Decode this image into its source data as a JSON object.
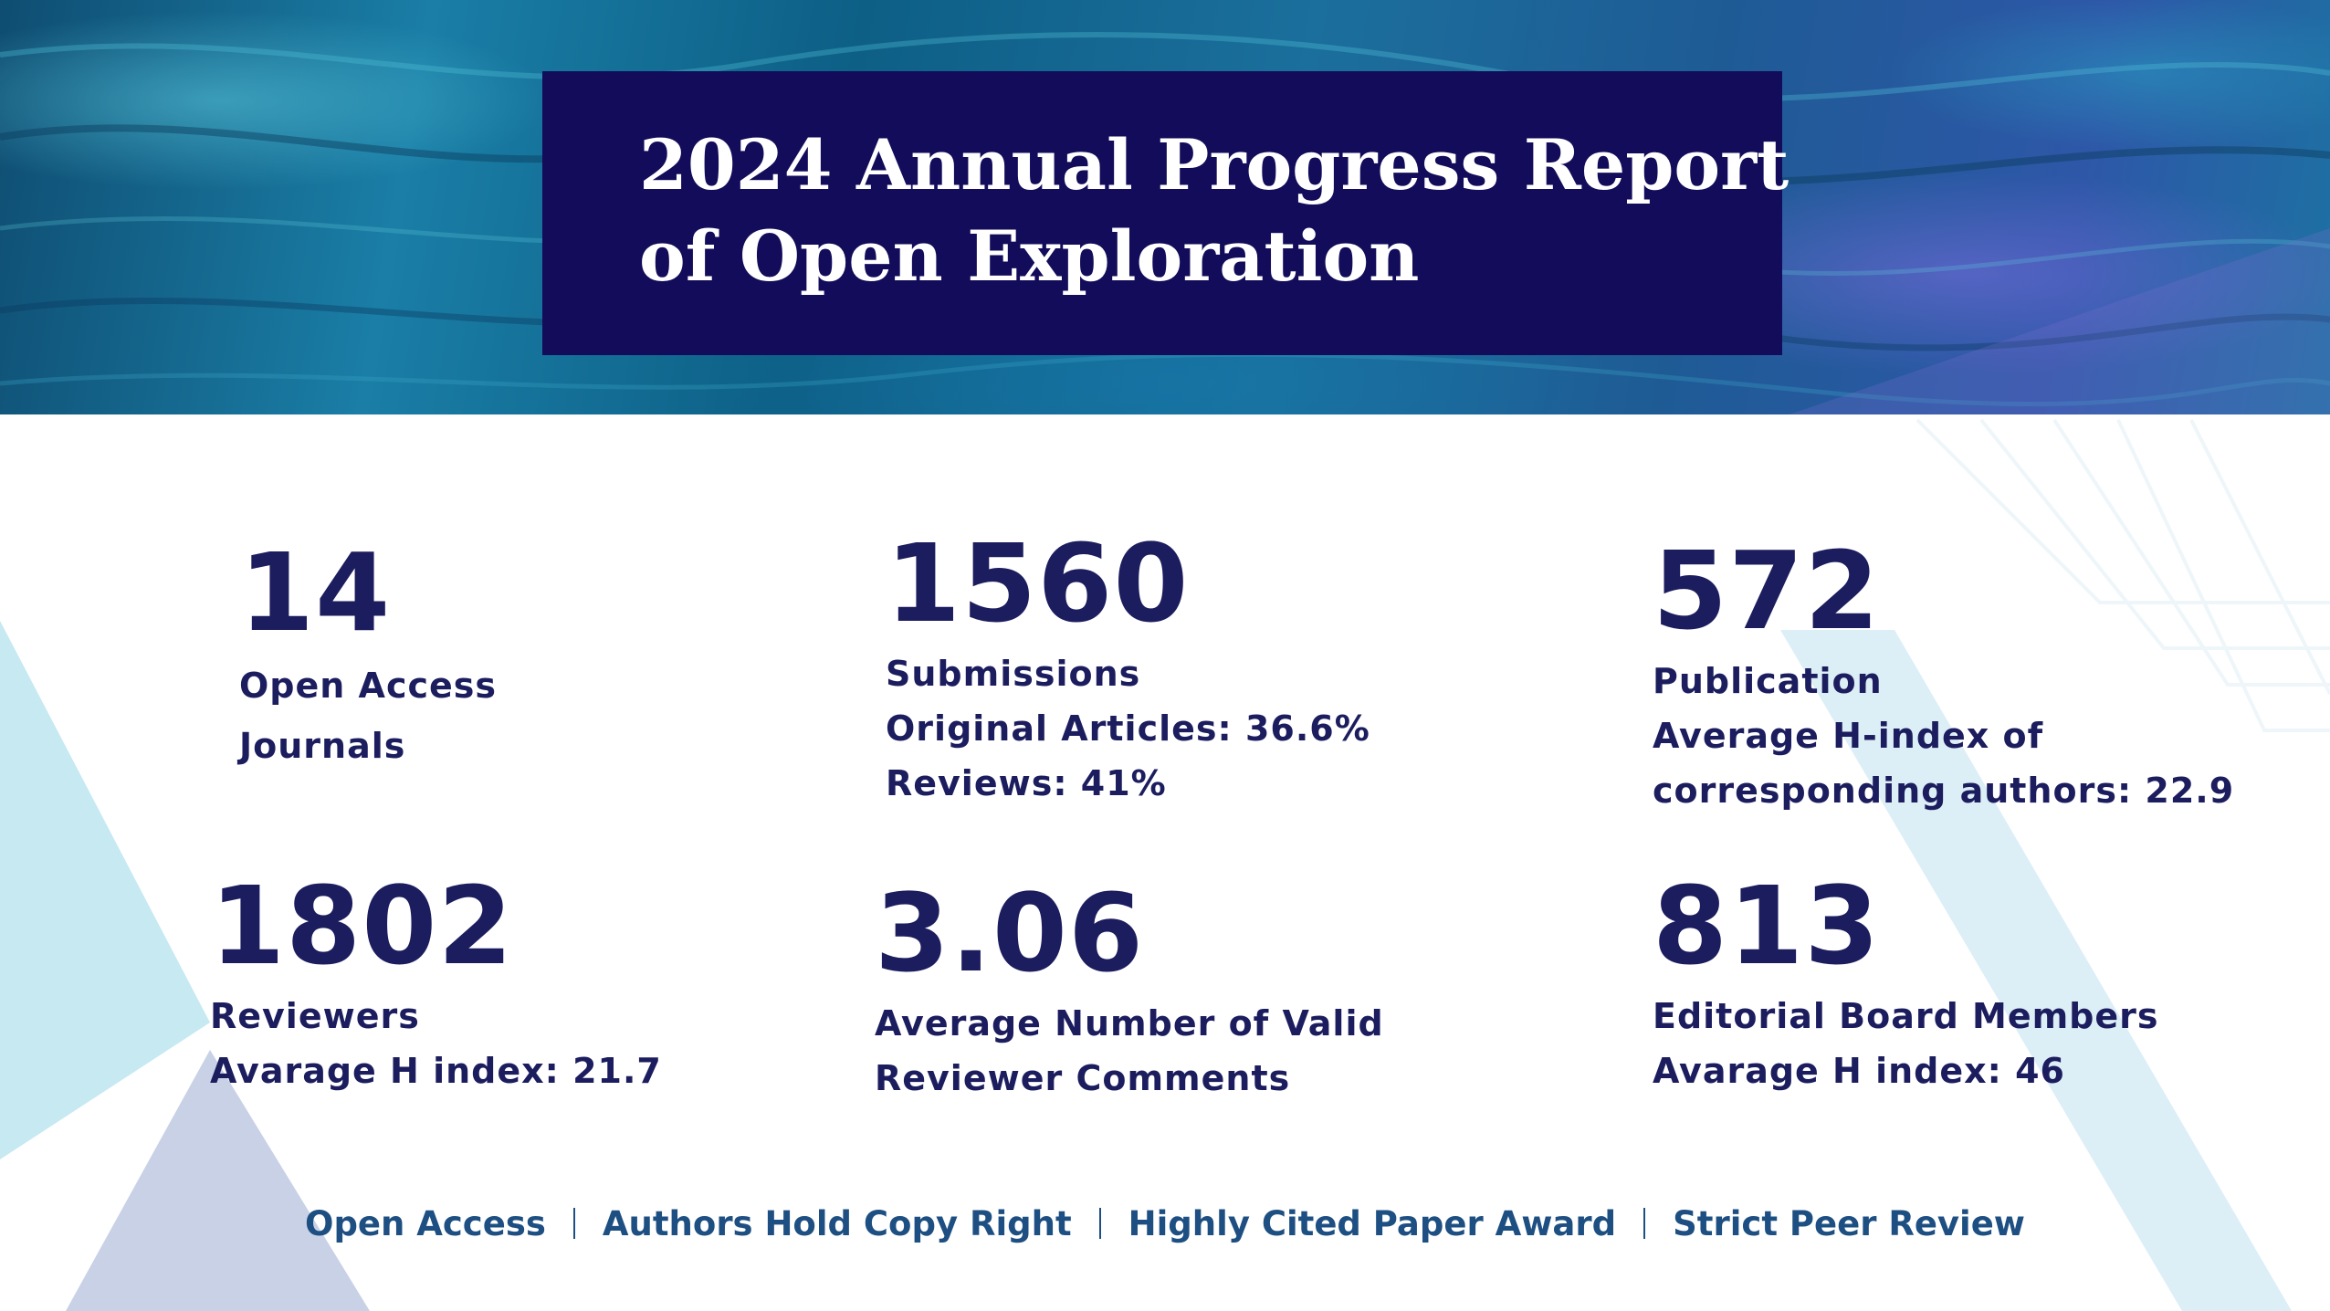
{
  "report": {
    "title_line_1": "2024 Annual Progress Report",
    "title_line_2": "of Open Exploration"
  },
  "stats": {
    "journals": {
      "value": "14",
      "label_line_1": "Open Access",
      "label_line_2": "Journals"
    },
    "submissions": {
      "value": "1560",
      "label": "Submissions",
      "detail_1": "Original Articles: 36.6%",
      "detail_2": "Reviews: 41%"
    },
    "publication": {
      "value": "572",
      "label": "Publication",
      "detail_1": "Average H-index of",
      "detail_2": "corresponding authors: 22.9"
    },
    "reviewers": {
      "value": "1802",
      "label": "Reviewers",
      "detail_1": "Avarage H index: 21.7"
    },
    "comments": {
      "value": "3.06",
      "label_line_1": "Average Number of Valid",
      "label_line_2": "Reviewer Comments"
    },
    "editorial": {
      "value": "813",
      "label": "Editorial Board Members",
      "detail_1": "Avarage H index: 46"
    }
  },
  "footer": {
    "items": [
      "Open Access",
      "Authors Hold Copy Right",
      "Highly Cited Paper Award",
      "Strict Peer Review"
    ]
  },
  "colors": {
    "title_box": "#120c5a",
    "stat_text": "#1c1d5e",
    "footer_text": "#1e4f82",
    "decor_light_blue": "#c6e9f2",
    "decor_lavender": "#c9d1e6"
  }
}
